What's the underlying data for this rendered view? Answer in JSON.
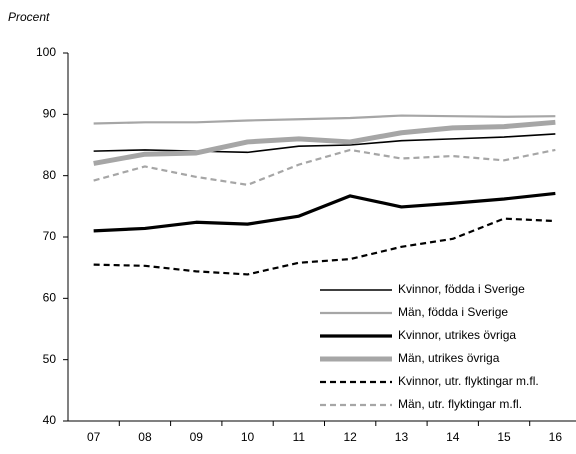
{
  "chart_data": {
    "type": "line",
    "y_label": "Procent",
    "categories": [
      "07",
      "08",
      "09",
      "10",
      "11",
      "12",
      "13",
      "14",
      "15",
      "16"
    ],
    "ylim": [
      40,
      100
    ],
    "yticks": [
      40,
      50,
      60,
      70,
      80,
      90,
      100
    ],
    "grid": false,
    "legend": "lower right",
    "series": [
      {
        "name": "Kvinnor, födda i Sverige",
        "color": "#000000",
        "weight": "thin",
        "style": "solid",
        "values": [
          84,
          84.2,
          84,
          83.8,
          84.8,
          85,
          85.7,
          86,
          86.3,
          86.8
        ]
      },
      {
        "name": "Män, födda i Sverige",
        "color": "#a6a6a6",
        "weight": "medium",
        "style": "solid",
        "values": [
          88.5,
          88.7,
          88.7,
          89,
          89.2,
          89.4,
          89.8,
          89.7,
          89.6,
          89.7
        ]
      },
      {
        "name": "Kvinnor, utrikes övriga",
        "color": "#000000",
        "weight": "thick",
        "style": "solid",
        "values": [
          71,
          71.4,
          72.4,
          72.1,
          73.4,
          76.7,
          74.9,
          75.5,
          76.2,
          77.1
        ]
      },
      {
        "name": "Män, utrikes övriga",
        "color": "#a6a6a6",
        "weight": "heavy",
        "style": "solid",
        "values": [
          82,
          83.5,
          83.7,
          85.5,
          86,
          85.5,
          87,
          87.8,
          88,
          88.7
        ]
      },
      {
        "name": "Kvinnor, utr. flyktingar m.fl.",
        "color": "#000000",
        "weight": "medium",
        "style": "dashed",
        "values": [
          65.5,
          65.3,
          64.4,
          63.9,
          65.8,
          66.4,
          68.4,
          69.7,
          73,
          72.6
        ]
      },
      {
        "name": "Män, utr. flyktingar m.fl.",
        "color": "#a6a6a6",
        "weight": "medium",
        "style": "dashed",
        "values": [
          79.2,
          81.5,
          79.8,
          78.5,
          81.8,
          84.2,
          82.8,
          83.2,
          82.5,
          84.2
        ]
      }
    ]
  }
}
